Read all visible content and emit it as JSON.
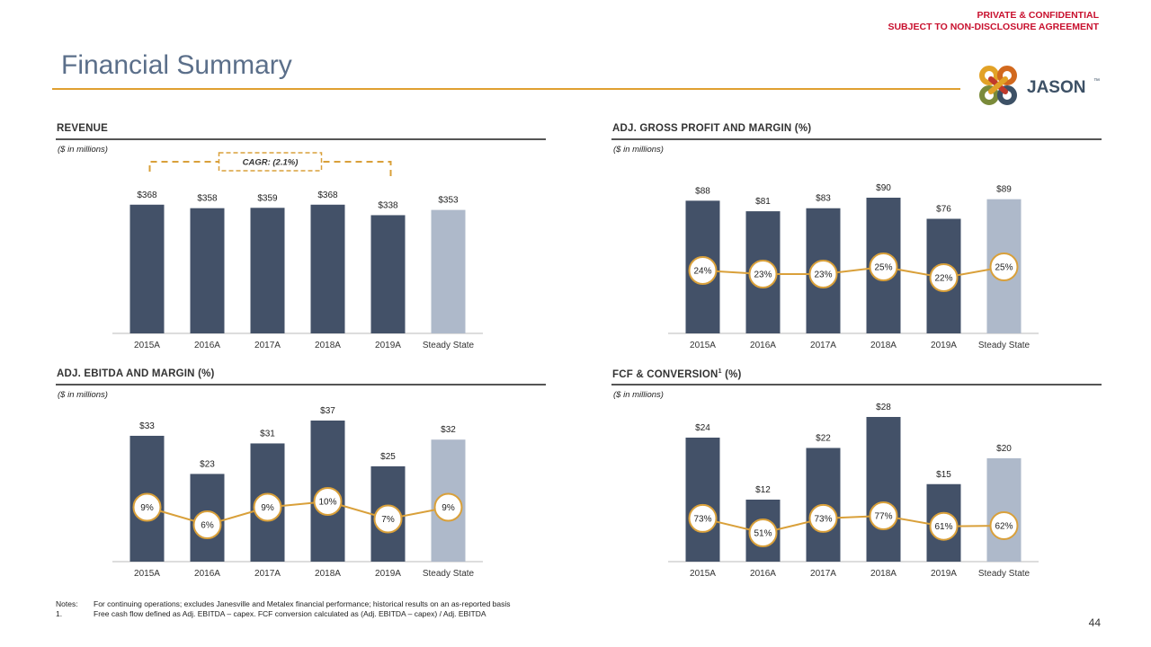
{
  "header": {
    "confidential_line1": "PRIVATE & CONFIDENTIAL",
    "confidential_line2": "SUBJECT TO NON-DISCLOSURE  AGREEMENT",
    "title": "Financial Summary",
    "logo_text": "JASON",
    "logo_tm": "™"
  },
  "colors": {
    "dark_bar": "#435168",
    "light_bar": "#aeb9ca",
    "accent": "#d9a03a",
    "confidential": "#c8102e"
  },
  "chart_data": [
    {
      "id": "revenue",
      "type": "bar",
      "title": "REVENUE",
      "unit_label": "($ in millions)",
      "categories": [
        "2015A",
        "2016A",
        "2017A",
        "2018A",
        "2019A",
        "Steady State"
      ],
      "values": [
        368,
        358,
        359,
        368,
        338,
        353
      ],
      "value_labels": [
        "$368",
        "$358",
        "$359",
        "$368",
        "$338",
        "$353"
      ],
      "annotation": "CAGR: (2.1%)",
      "ylim": [
        0,
        370
      ]
    },
    {
      "id": "gross_profit",
      "type": "bar",
      "title": "ADJ. GROSS PROFIT AND MARGIN (%)",
      "unit_label": "($ in millions)",
      "categories": [
        "2015A",
        "2016A",
        "2017A",
        "2018A",
        "2019A",
        "Steady State"
      ],
      "values": [
        88,
        81,
        83,
        90,
        76,
        89
      ],
      "value_labels": [
        "$88",
        "$81",
        "$83",
        "$90",
        "$76",
        "$89"
      ],
      "margin": [
        24,
        23,
        23,
        25,
        22,
        25
      ],
      "margin_labels": [
        "24%",
        "23%",
        "23%",
        "25%",
        "22%",
        "25%"
      ],
      "ylim": [
        0,
        90
      ]
    },
    {
      "id": "ebitda",
      "type": "bar",
      "title": "ADJ. EBITDA AND MARGIN (%)",
      "unit_label": "($ in millions)",
      "categories": [
        "2015A",
        "2016A",
        "2017A",
        "2018A",
        "2019A",
        "Steady State"
      ],
      "values": [
        33,
        23,
        31,
        37,
        25,
        32
      ],
      "value_labels": [
        "$33",
        "$23",
        "$31",
        "$37",
        "$25",
        "$32"
      ],
      "margin": [
        9,
        6,
        9,
        10,
        7,
        9
      ],
      "margin_labels": [
        "9%",
        "6%",
        "9%",
        "10%",
        "7%",
        "9%"
      ],
      "ylim": [
        0,
        37
      ]
    },
    {
      "id": "fcf",
      "type": "bar",
      "title": "FCF & CONVERSION",
      "title_sup": "1",
      "title_suffix": " (%)",
      "unit_label": "($ in millions)",
      "categories": [
        "2015A",
        "2016A",
        "2017A",
        "2018A",
        "2019A",
        "Steady State"
      ],
      "values": [
        24,
        12,
        22,
        28,
        15,
        20
      ],
      "value_labels": [
        "$24",
        "$12",
        "$22",
        "$28",
        "$15",
        "$20"
      ],
      "margin": [
        73,
        51,
        73,
        77,
        61,
        62
      ],
      "margin_labels": [
        "73%",
        "51%",
        "73%",
        "77%",
        "61%",
        "62%"
      ],
      "ylim": [
        0,
        28
      ]
    }
  ],
  "notes": {
    "label1": "Notes:",
    "text1": "For continuing operations; excludes Janesville and Metalex financial performance; historical results on an as-reported basis",
    "label2": "1.",
    "text2": "Free cash flow defined as Adj. EBITDA – capex. FCF conversion calculated as (Adj. EBITDA – capex) / Adj. EBITDA"
  },
  "page_number": "44"
}
